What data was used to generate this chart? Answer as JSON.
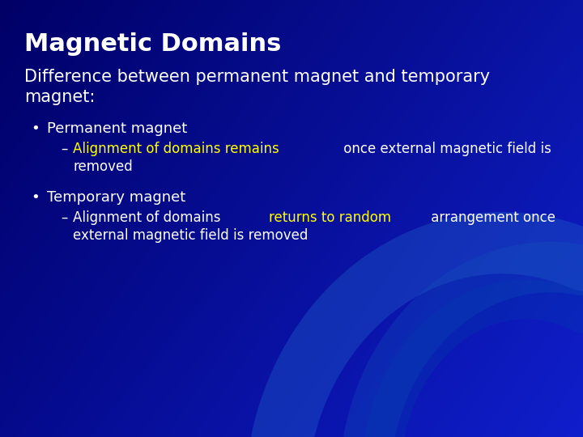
{
  "title": "Magnetic Domains",
  "subtitle_line1": "Difference between permanent magnet and temporary",
  "subtitle_line2": "magnet:",
  "bg_dark": "#000066",
  "bg_mid": "#0000aa",
  "bg_light": "#0033cc",
  "title_color": "#FFFFFF",
  "text_color": "#FFFFFF",
  "highlight_color": "#FFFF00",
  "title_fontsize": 22,
  "subtitle_fontsize": 15,
  "bullet_fontsize": 13,
  "sub_bullet_fontsize": 12,
  "bullet1": "Permanent magnet",
  "sub1_yellow": "Alignment of domains remains",
  "sub1_white": " once external magnetic field is",
  "sub1_line2": "removed",
  "bullet2": "Temporary magnet",
  "sub2_white1": "Alignment of domains ",
  "sub2_yellow": "returns to random",
  "sub2_white2": " arrangement once",
  "sub2_line2": "external magnetic field is removed"
}
